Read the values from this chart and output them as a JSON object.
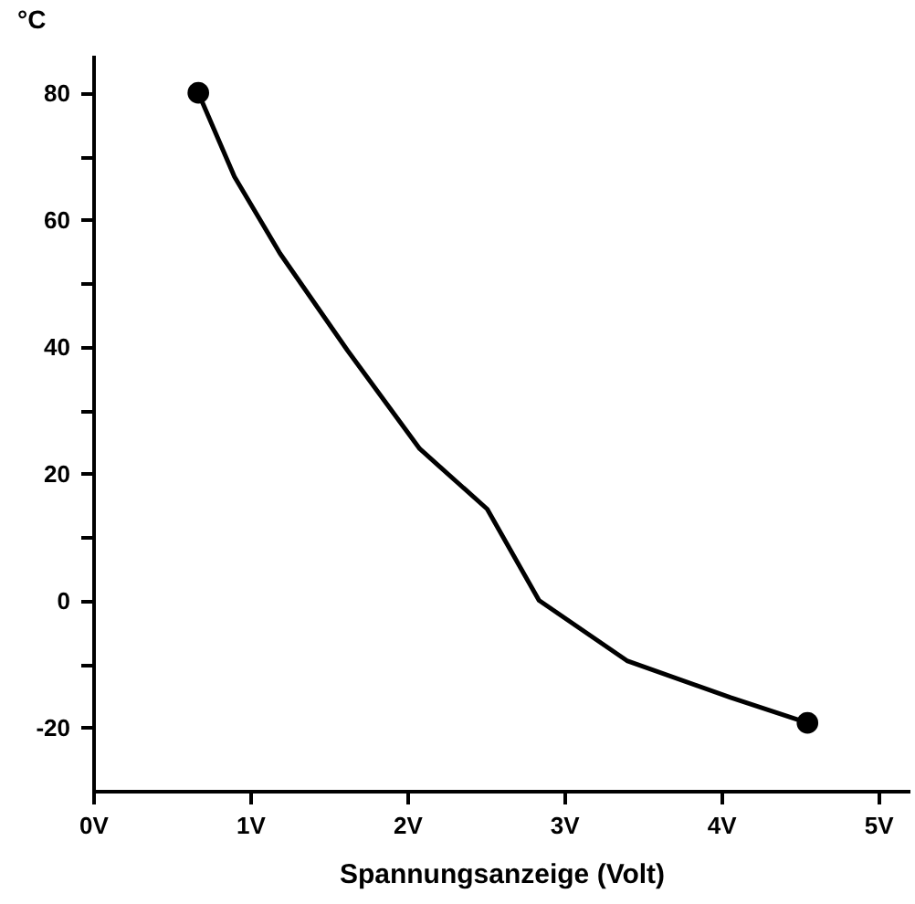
{
  "chart_data": {
    "type": "line",
    "xlabel": "Spannungsanzeige (Volt)",
    "ylabel": "°C",
    "xlim": [
      0,
      5.2
    ],
    "ylim": [
      -30,
      86
    ],
    "xticks": [
      {
        "value": 0,
        "label": "0V"
      },
      {
        "value": 1,
        "label": "1V"
      },
      {
        "value": 2,
        "label": "2V"
      },
      {
        "value": 3,
        "label": "3V"
      },
      {
        "value": 4,
        "label": "4V"
      },
      {
        "value": 5,
        "label": "5V"
      }
    ],
    "yticks": [
      -20,
      {
        "value": -10,
        "label": null
      },
      0,
      {
        "value": 10,
        "label": null
      },
      20,
      {
        "value": 30,
        "label": null
      },
      40,
      {
        "value": 50,
        "label": null
      },
      60,
      {
        "value": 70,
        "label": null
      },
      80
    ],
    "grid": false,
    "line_style": "solid",
    "series": [
      {
        "color": "#000000",
        "x": [
          0.67,
          0.9,
          1.19,
          1.62,
          2.08,
          2.51,
          2.84,
          3.4,
          4.06,
          4.55
        ],
        "values": [
          80,
          66.8,
          54.7,
          39.4,
          23.9,
          14.4,
          0,
          -9.5,
          -15.3,
          -19.3
        ]
      },
      {
        "type": "scatter",
        "marker": "circle",
        "color": "#000000",
        "x": [
          0.67,
          4.55
        ],
        "values": [
          80,
          -19.3
        ]
      }
    ]
  }
}
